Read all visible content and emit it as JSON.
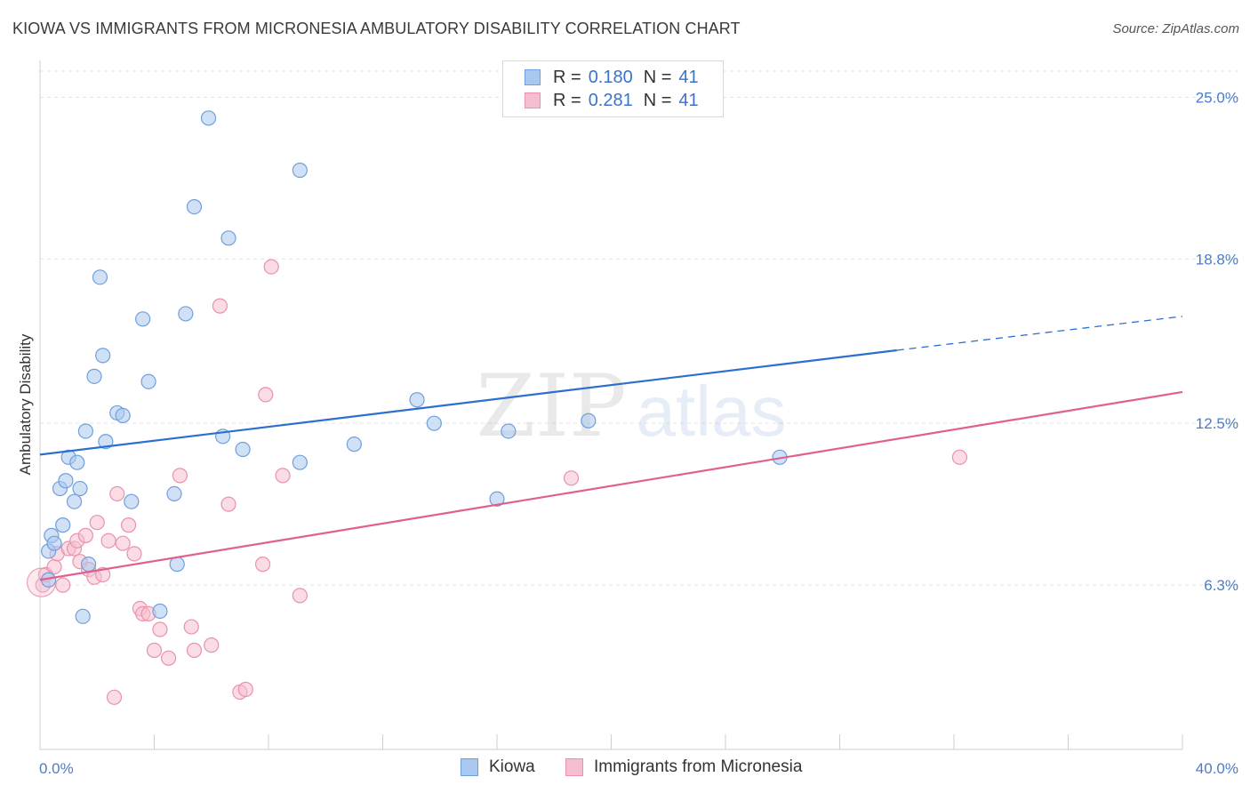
{
  "title": "KIOWA VS IMMIGRANTS FROM MICRONESIA AMBULATORY DISABILITY CORRELATION CHART",
  "source": "Source: ZipAtlas.com",
  "watermark": {
    "zip": "ZIP",
    "atlas": "atlas"
  },
  "legend": {
    "rows": [
      {
        "r_label": "R =",
        "r_value": "0.180",
        "n_label": "N =",
        "n_value": "41"
      },
      {
        "r_label": "R =",
        "r_value": "0.281",
        "n_label": "N =",
        "n_value": "41"
      }
    ]
  },
  "bottom_legend": {
    "series1": "Kiowa",
    "series2": "Immigrants from Micronesia"
  },
  "colors": {
    "series1_fill": "#a9c8ef",
    "series1_stroke": "#6f9fdc",
    "series1_line": "#2b6fcf",
    "series2_fill": "#f6bfd0",
    "series2_stroke": "#e892ad",
    "series2_line": "#e0608d",
    "tick": "#4a7cc9",
    "grid": "#e3e3e3"
  },
  "chart_data": {
    "type": "scatter",
    "ylabel": "Ambulatory Disability",
    "xlim": [
      0,
      40
    ],
    "ylim": [
      0,
      26
    ],
    "x_tick_labels": [
      "0.0%",
      "40.0%"
    ],
    "y_ticks": [
      {
        "value": 6.3,
        "label": "6.3%"
      },
      {
        "value": 12.5,
        "label": "12.5%"
      },
      {
        "value": 18.8,
        "label": "18.8%"
      },
      {
        "value": 25.0,
        "label": "25.0%"
      }
    ],
    "series": [
      {
        "name": "Kiowa",
        "trend": {
          "x0": 0,
          "y0": 11.3,
          "x1": 30,
          "y1": 15.3,
          "x_end": 40,
          "y_end": 16.6
        },
        "points": [
          [
            0.3,
            6.5
          ],
          [
            0.3,
            7.6
          ],
          [
            0.4,
            8.2
          ],
          [
            0.5,
            7.9
          ],
          [
            0.7,
            10.0
          ],
          [
            0.8,
            8.6
          ],
          [
            0.9,
            10.3
          ],
          [
            1.0,
            11.2
          ],
          [
            1.2,
            9.5
          ],
          [
            1.3,
            11.0
          ],
          [
            1.4,
            10.0
          ],
          [
            1.5,
            5.1
          ],
          [
            1.6,
            12.2
          ],
          [
            1.7,
            7.1
          ],
          [
            1.9,
            14.3
          ],
          [
            2.1,
            18.1
          ],
          [
            2.2,
            15.1
          ],
          [
            2.3,
            11.8
          ],
          [
            2.7,
            12.9
          ],
          [
            2.9,
            12.8
          ],
          [
            3.2,
            9.5
          ],
          [
            3.6,
            16.5
          ],
          [
            3.8,
            14.1
          ],
          [
            4.2,
            5.3
          ],
          [
            4.7,
            9.8
          ],
          [
            4.8,
            7.1
          ],
          [
            5.1,
            16.7
          ],
          [
            5.4,
            20.8
          ],
          [
            5.9,
            24.2
          ],
          [
            6.4,
            12.0
          ],
          [
            6.6,
            19.6
          ],
          [
            7.1,
            11.5
          ],
          [
            9.1,
            22.2
          ],
          [
            9.1,
            11.0
          ],
          [
            11.0,
            11.7
          ],
          [
            13.2,
            13.4
          ],
          [
            13.8,
            12.5
          ],
          [
            16.0,
            9.6
          ],
          [
            16.4,
            12.2
          ],
          [
            19.2,
            12.6
          ],
          [
            25.9,
            11.2
          ]
        ]
      },
      {
        "name": "Immigrants from Micronesia",
        "trend": {
          "x0": 0,
          "y0": 6.5,
          "x1": 40,
          "y1": 13.7
        },
        "points": [
          [
            0.1,
            6.3
          ],
          [
            0.2,
            6.7
          ],
          [
            0.5,
            7.0
          ],
          [
            0.6,
            7.5
          ],
          [
            0.8,
            6.3
          ],
          [
            1.0,
            7.7
          ],
          [
            1.2,
            7.7
          ],
          [
            1.3,
            8.0
          ],
          [
            1.4,
            7.2
          ],
          [
            1.6,
            8.2
          ],
          [
            1.7,
            6.9
          ],
          [
            1.9,
            6.6
          ],
          [
            2.0,
            8.7
          ],
          [
            2.2,
            6.7
          ],
          [
            2.4,
            8.0
          ],
          [
            2.6,
            2.0
          ],
          [
            2.7,
            9.8
          ],
          [
            2.9,
            7.9
          ],
          [
            3.1,
            8.6
          ],
          [
            3.3,
            7.5
          ],
          [
            3.5,
            5.4
          ],
          [
            3.6,
            5.2
          ],
          [
            3.8,
            5.2
          ],
          [
            4.0,
            3.8
          ],
          [
            4.2,
            4.6
          ],
          [
            4.5,
            3.5
          ],
          [
            4.9,
            10.5
          ],
          [
            5.3,
            4.7
          ],
          [
            5.4,
            3.8
          ],
          [
            6.0,
            4.0
          ],
          [
            6.3,
            17.0
          ],
          [
            6.6,
            9.4
          ],
          [
            7.0,
            2.2
          ],
          [
            7.2,
            2.3
          ],
          [
            7.8,
            7.1
          ],
          [
            7.9,
            13.6
          ],
          [
            8.1,
            18.5
          ],
          [
            8.5,
            10.5
          ],
          [
            9.1,
            5.9
          ],
          [
            18.6,
            10.4
          ],
          [
            32.2,
            11.2
          ]
        ]
      }
    ],
    "grid": true,
    "legend_position": "top-center"
  }
}
